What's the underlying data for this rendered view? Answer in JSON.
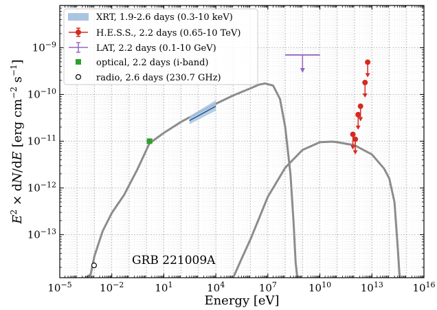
{
  "chart_data": {
    "type": "scatter",
    "title": "",
    "xlabel": "Energy [eV]",
    "ylabel": "E² × dN/dE [erg cm⁻² s⁻¹]",
    "x_scale": "log",
    "y_scale": "log",
    "xlim": [
      1e-05,
      1e+16
    ],
    "ylim": [
      1.2e-14,
      8e-09
    ],
    "grid": true,
    "legend_position": "top-left",
    "x_ticks": [
      {
        "value": 1e-05,
        "exp": "−5"
      },
      {
        "value": 0.01,
        "exp": "−2"
      },
      {
        "value": 10,
        "exp": "1"
      },
      {
        "value": 10000.0,
        "exp": "4"
      },
      {
        "value": 10000000.0,
        "exp": "7"
      },
      {
        "value": 10000000000.0,
        "exp": "10"
      },
      {
        "value": 10000000000000.0,
        "exp": "13"
      },
      {
        "value": 1e+16,
        "exp": "16"
      }
    ],
    "y_ticks": [
      {
        "value": 1e-13,
        "exp": "−13"
      },
      {
        "value": 1e-12,
        "exp": "−12"
      },
      {
        "value": 1e-11,
        "exp": "−11"
      },
      {
        "value": 1e-10,
        "exp": "−10"
      },
      {
        "value": 1e-09,
        "exp": "−9"
      }
    ],
    "annotation": "GRB 221009A",
    "legend": [
      {
        "label": "XRT, 1.9-2.6 days (0.3-10 keV)",
        "marker": "band",
        "color": "#a9c5e0"
      },
      {
        "label": "H.E.S.S., 2.2 days (0.65-10 TeV)",
        "marker": "errorbar-dot",
        "color": "#d62a1f"
      },
      {
        "label": "LAT, 2.2 days (0.1-10 GeV)",
        "marker": "errorbar",
        "color": "#9467bd"
      },
      {
        "label": "optical, 2.2 days (i-band)",
        "marker": "square",
        "color": "#2ca02c"
      },
      {
        "label": "radio, 2.6 days (230.7 GHz)",
        "marker": "open-circle",
        "color": "#000000"
      }
    ],
    "series": [
      {
        "name": "XRT, 1.9-2.6 days (0.3-10 keV)",
        "kind": "band",
        "color": "#a9c5e0",
        "line_color": "#1f4e8c",
        "x": [
          300,
          10000
        ],
        "y_low": [
          2.3e-11,
          4.5e-11
        ],
        "y_high": [
          3.4e-11,
          7.5e-11
        ],
        "y_mid": [
          2.75e-11,
          5.6e-11
        ]
      },
      {
        "name": "H.E.S.S., 2.2 days (0.65-10 TeV)",
        "kind": "upper_limits",
        "color": "#d62a1f",
        "points": [
          {
            "x": 800000000000.0,
            "y": 1.4e-11
          },
          {
            "x": 1100000000000.0,
            "y": 1.1e-11
          },
          {
            "x": 1600000000000.0,
            "y": 3.7e-11
          },
          {
            "x": 2200000000000.0,
            "y": 5.6e-11
          },
          {
            "x": 4000000000000.0,
            "y": 1.8e-10
          },
          {
            "x": 5700000000000.0,
            "y": 4.9e-10
          }
        ]
      },
      {
        "name": "LAT, 2.2 days (0.1-10 GeV)",
        "kind": "upper_limit_bar",
        "color": "#9467bd",
        "x_low": 100000000.0,
        "x_high": 10000000000.0,
        "x_center": 1000000000.0,
        "y": 7e-10
      },
      {
        "name": "optical, 2.2 days (i-band)",
        "kind": "point",
        "color": "#2ca02c",
        "x": 1.5,
        "y": 1e-11
      },
      {
        "name": "radio, 2.6 days (230.7 GHz)",
        "kind": "point",
        "color": "#000000",
        "x": 0.00095,
        "y": 2.2e-14
      },
      {
        "kind": "model_curve",
        "color": "#8c8c8c",
        "x": [
          0.0003,
          0.0006,
          0.001,
          0.003,
          0.01,
          0.05,
          0.3,
          1.5,
          10,
          100,
          1000,
          10000.0,
          100000.0,
          1000000.0,
          3000000.0,
          7000000.0,
          20000000.0,
          50000000.0,
          100000000.0,
          200000000.0,
          300000000.0,
          400000000.0,
          500000000.0
        ],
        "y": [
          1.2e-14,
          1.4e-14,
          3.5e-14,
          1.2e-13,
          2.9e-13,
          7e-13,
          2.5e-12,
          9e-12,
          1.5e-11,
          2.6e-11,
          4.1e-11,
          6.3e-11,
          9.5e-11,
          1.35e-10,
          1.62e-10,
          1.72e-10,
          1.55e-10,
          8e-11,
          2e-11,
          2e-12,
          2e-13,
          2.5e-14,
          1.2e-14
        ]
      },
      {
        "kind": "model_curve",
        "color": "#8c8c8c",
        "x": [
          100000.0,
          300000.0,
          1000000.0,
          10000000.0,
          100000000.0,
          1000000000.0,
          10000000000.0,
          50000000000.0,
          100000000000.0,
          1000000000000.0,
          10000000000000.0,
          50000000000000.0,
          100000000000000.0,
          200000000000000.0,
          300000000000000.0,
          400000000000000.0
        ],
        "y": [
          1.2e-14,
          3e-14,
          8e-14,
          6.5e-13,
          2.7e-12,
          6.5e-12,
          9.5e-12,
          9.8e-12,
          9.5e-12,
          8.2e-12,
          5.2e-12,
          2.6e-12,
          1.6e-12,
          5e-13,
          6e-14,
          1.2e-14
        ]
      }
    ]
  }
}
